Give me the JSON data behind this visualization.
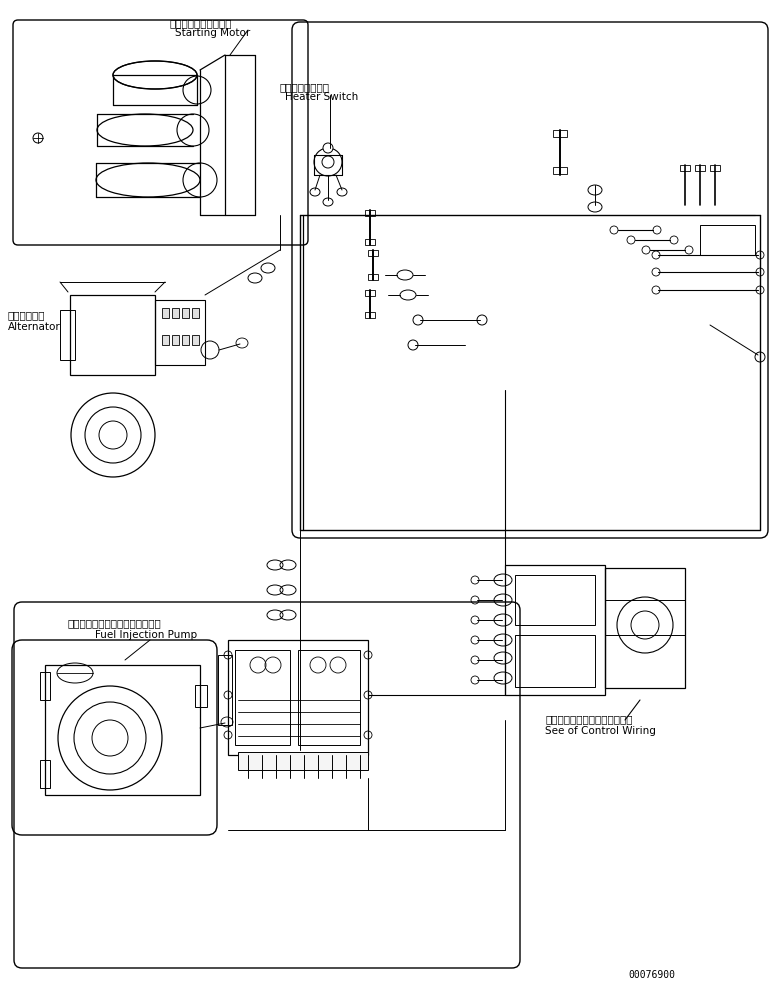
{
  "figure_width": 7.75,
  "figure_height": 9.84,
  "dpi": 100,
  "background_color": "#ffffff",
  "line_color": "#000000",
  "text_color": "#000000",
  "part_number": "00076900",
  "labels": {
    "starting_motor_jp": "スターティングモータ",
    "starting_motor_en": "Starting Motor",
    "heater_switch_jp": "ヒータースイッチ",
    "heater_switch_en": "Heater Switch",
    "alternator_jp": "オルタネータ",
    "alternator_en": "Alternator",
    "fuel_pump_jp": "フェエルインジェクションポンプ",
    "fuel_pump_en": "Fuel Injection Pump",
    "control_wiring_jp": "コントロールワイヤリング参照",
    "control_wiring_en": "See of Control Wiring"
  },
  "font_sizes": {
    "label_jp": 7.5,
    "label_en": 7.5,
    "part_number": 7
  }
}
